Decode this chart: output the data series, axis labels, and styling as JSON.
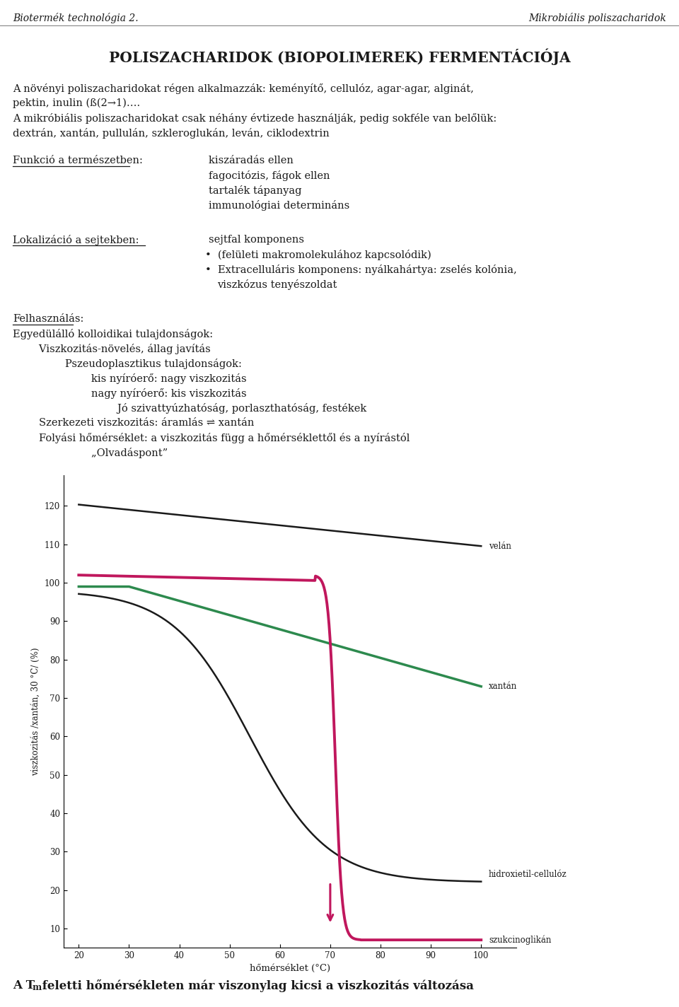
{
  "header_left": "Biotermék technológia 2.",
  "header_right": "Mikrobiális poliszacharidok",
  "title": "POLISZACHARIDOK (BIOPOLIMEREK) FERMENTÁCIÓJA",
  "para1_line1": "A növényi poliszacharidokat régen alkalmazzák: keményítő, cellulóz, agar-agar, alginát,",
  "para1_line2": "pektin, inulin (ß(2→1)….",
  "para1_line3": "A mikróbiális poliszacharidokat csak néhány évtizede használják, pedig sokféle van belőlük:",
  "para1_line4": "dextrán, xantán, pullulán, szkleroglukán, leván, ciklodextrin",
  "funkció_label": "Funkció a természetben:",
  "funkció_items": [
    "kiszáradás ellen",
    "fagocitózis, fágok ellen",
    "tartalék tápanyag",
    "immunológiai determináns"
  ],
  "lokalizáció_label": "Lokalizáció a sejtekben:",
  "lokalizáció_item0": "sejtfal komponens",
  "lokalizáció_item1": "•  (felületi makromolekulához kapcsolódik)",
  "lokalizáció_item2a": "•  Extracelluláris komponens: nyálkahártya: zselés kolónia,",
  "lokalizáció_item2b": "    viszkózus tenyészoldat",
  "felhasználás_label": "Felhasználás:",
  "felhasználás_lines": [
    "Egyedülálló kolloidikai tulajdonságok:",
    "        Viszkozitás-növelés, állag javítás",
    "                Pszeudoplasztikus tulajdonságok:",
    "                        kis nyíróerő: nagy viszkozitás",
    "                        nagy nyíróerő: kis viszkozitás",
    "                                Jó szivattyúzhatóság, porlaszthatóság, festékek",
    "        Szerkezeti viszkozitás: áramlás ⇌ xantán",
    "        Folyási hőmérséklet: a viszkozitás függ a hőmérséklettől és a nyírástól",
    "                        „Olvadáspont”"
  ],
  "chart_xlabel": "hőmérséklet (°C)",
  "chart_ylabel": "viszkozitás /xantán, 30 °C/ (%)",
  "chart_yticks": [
    10,
    20,
    30,
    40,
    50,
    60,
    70,
    80,
    90,
    100,
    110,
    120
  ],
  "chart_xticks": [
    20,
    30,
    40,
    50,
    60,
    70,
    80,
    90,
    100
  ],
  "chart_xlim": [
    17,
    107
  ],
  "chart_ylim": [
    5,
    128
  ],
  "label_velan": "velán",
  "label_xantan": "xantán",
  "label_hidroxietil": "hidroxietil-cellulóz",
  "label_szukcinoglikán": "szukcinoglikán",
  "footer_bold": "A T",
  "footer_sub": "m",
  "footer_normal": " feletti hőmérsékleten már viszonylag kicsi a viszkozitás változása",
  "bg_color": "#ffffff",
  "text_color": "#1a1a1a",
  "curve_velan_color": "#1a1a1a",
  "curve_xantan_color": "#2d8a4e",
  "curve_hidroxietil_color": "#1a1a1a",
  "curve_szukcinoglikán_color": "#c0175d",
  "arrow_color": "#c0175d"
}
